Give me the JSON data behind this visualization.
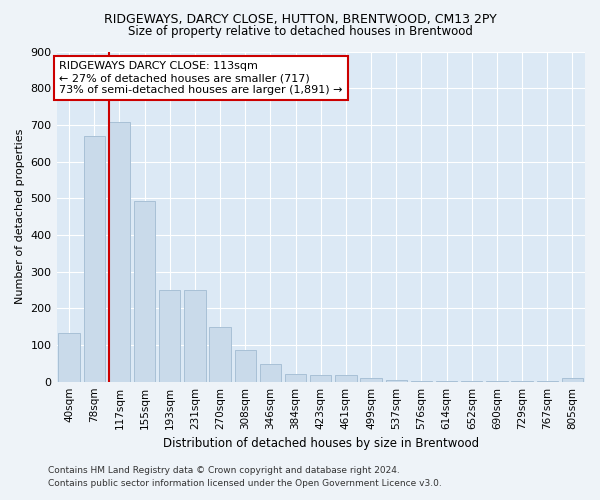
{
  "title": "RIDGEWAYS, DARCY CLOSE, HUTTON, BRENTWOOD, CM13 2PY",
  "subtitle": "Size of property relative to detached houses in Brentwood",
  "xlabel": "Distribution of detached houses by size in Brentwood",
  "ylabel": "Number of detached properties",
  "categories": [
    "40sqm",
    "78sqm",
    "117sqm",
    "155sqm",
    "193sqm",
    "231sqm",
    "270sqm",
    "308sqm",
    "346sqm",
    "384sqm",
    "423sqm",
    "461sqm",
    "499sqm",
    "537sqm",
    "576sqm",
    "614sqm",
    "652sqm",
    "690sqm",
    "729sqm",
    "767sqm",
    "805sqm"
  ],
  "values": [
    133,
    670,
    707,
    492,
    250,
    250,
    150,
    85,
    47,
    22,
    18,
    18,
    11,
    5,
    2,
    2,
    2,
    1,
    2,
    1,
    10
  ],
  "bar_color": "#c9daea",
  "bar_edge_color": "#a8c0d6",
  "vline_color": "#cc0000",
  "annotation_text": "RIDGEWAYS DARCY CLOSE: 113sqm\n← 27% of detached houses are smaller (717)\n73% of semi-detached houses are larger (1,891) →",
  "annotation_box_facecolor": "white",
  "annotation_box_edgecolor": "#cc0000",
  "ylim": [
    0,
    900
  ],
  "yticks": [
    0,
    100,
    200,
    300,
    400,
    500,
    600,
    700,
    800,
    900
  ],
  "footer_line1": "Contains HM Land Registry data © Crown copyright and database right 2024.",
  "footer_line2": "Contains public sector information licensed under the Open Government Licence v3.0.",
  "bg_color": "#eef3f8",
  "plot_bg_color": "#dce9f5",
  "grid_color": "#ffffff",
  "vline_xindex": 2
}
